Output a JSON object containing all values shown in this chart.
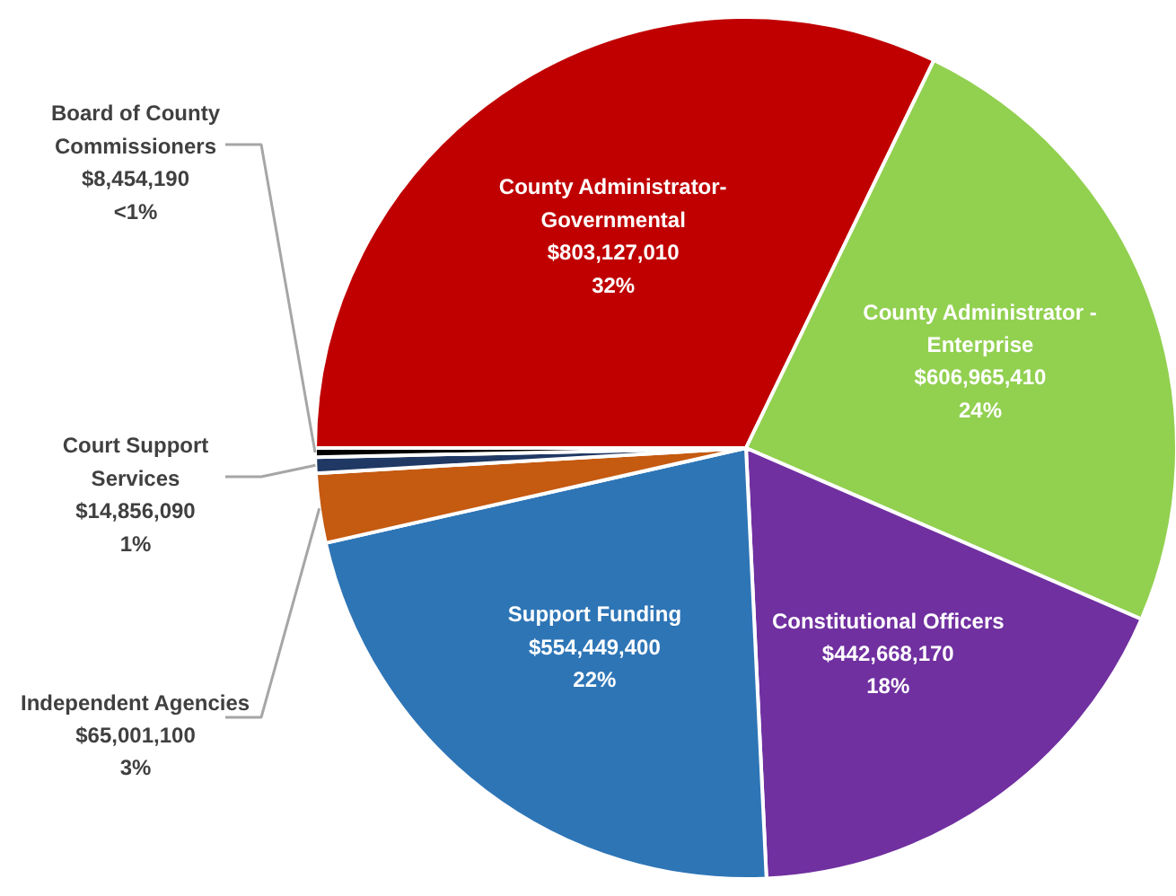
{
  "chart_data": {
    "type": "pie",
    "categories": [
      "County Administrator-\nGovernmental",
      "County Administrator -\nEnterprise",
      "Constitutional Officers",
      "Support Funding",
      "Independent Agencies",
      "Court Support\nServices",
      "Board of County\nCommissioners"
    ],
    "values": [
      803127010,
      606965410,
      442668170,
      554449400,
      65001100,
      14856090,
      8454190
    ],
    "colors": [
      "#c00000",
      "#92d050",
      "#7030a0",
      "#2e75b6",
      "#c55a11",
      "#1f3864",
      "#000000"
    ],
    "value_labels": [
      "$803,127,010\n32%",
      "$606,965,410\n24%",
      "$442,668,170\n18%",
      "$554,449,400\n22%",
      "$65,001,100\n3%",
      "$14,856,090\n1%",
      "$8,454,190\n<1%"
    ]
  }
}
